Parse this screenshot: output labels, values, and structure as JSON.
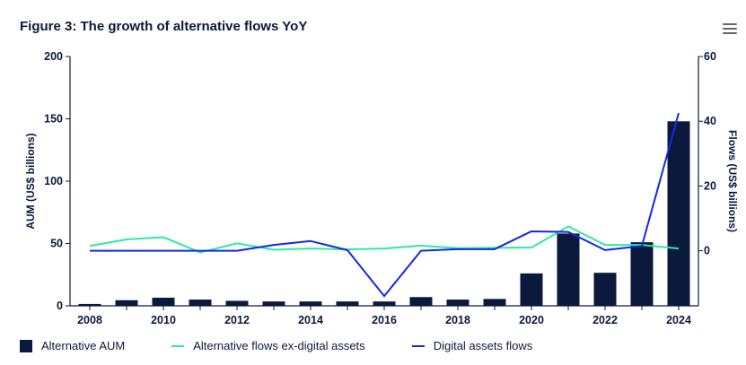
{
  "title": "Figure 3: The growth of alternative flows YoY",
  "icons": {
    "menu": "hamburger-menu-icon"
  },
  "chart_data": {
    "type": "bar+line",
    "x": [
      2008,
      2009,
      2010,
      2011,
      2012,
      2013,
      2014,
      2015,
      2016,
      2017,
      2018,
      2019,
      2020,
      2021,
      2022,
      2023,
      2024
    ],
    "x_tick_labels": [
      "2008",
      "2010",
      "2012",
      "2014",
      "2016",
      "2018",
      "2020",
      "2022",
      "2024"
    ],
    "y_left": {
      "label": "AUM (US$ billions)",
      "range": [
        0,
        200
      ],
      "ticks": [
        "0",
        "50",
        "100",
        "150",
        "200"
      ]
    },
    "y_right": {
      "label": "Flows (US$ billions)",
      "range": [
        -17,
        60
      ],
      "ticks": [
        "0",
        "20",
        "40",
        "60"
      ]
    },
    "series": [
      {
        "name": "Alternative AUM",
        "kind": "bar",
        "axis": "left",
        "color": "#0b1a3c",
        "values": [
          1.5,
          4.5,
          6.5,
          5,
          4,
          3.5,
          3.5,
          3.5,
          3.5,
          7,
          5,
          5.5,
          26,
          58,
          26.5,
          51,
          148
        ]
      },
      {
        "name": "Alternative flows ex-digital assets",
        "kind": "line",
        "axis": "right",
        "color": "#2ee8a4",
        "values": [
          1.5,
          3.5,
          4.2,
          -0.5,
          2.3,
          0.3,
          0.7,
          0.4,
          0.7,
          1.6,
          0.8,
          0.9,
          1,
          7.5,
          1.8,
          1.8,
          0.7
        ]
      },
      {
        "name": "Digital assets flows",
        "kind": "line",
        "axis": "right",
        "color": "#1428e8",
        "values": [
          0,
          0,
          0,
          0,
          0,
          1.8,
          3,
          0.2,
          -14,
          0,
          0.5,
          0.5,
          6,
          5.8,
          0.2,
          1.5,
          42.5
        ]
      }
    ],
    "legend_position": "bottom-left",
    "grid": false
  }
}
